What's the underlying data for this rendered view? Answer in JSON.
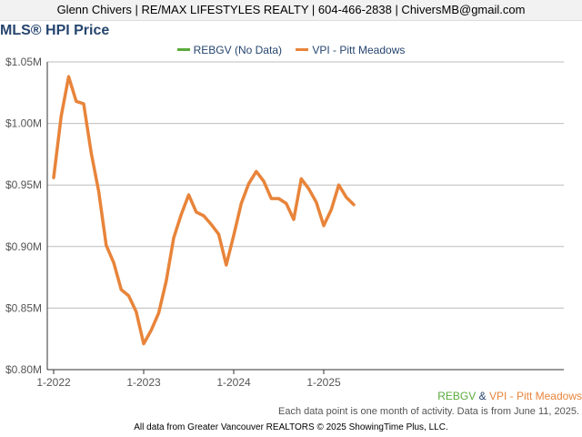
{
  "header": {
    "contact": "Glenn Chivers | RE/MAX LIFESTYLES REALTY | 604-466-2838 | ChiversMB@gmail.com"
  },
  "chart_data": {
    "type": "line",
    "title": "MLS® HPI Price",
    "ylim": [
      800000,
      1050000
    ],
    "y_ticks": [
      800000,
      850000,
      900000,
      950000,
      1000000,
      1050000
    ],
    "y_tick_labels": [
      "$0.80M",
      "$0.85M",
      "$0.90M",
      "$0.95M",
      "$1.00M",
      "$1.05M"
    ],
    "x_ticks": [
      "2022-01",
      "2023-01",
      "2024-01",
      "2025-01"
    ],
    "x_tick_labels": [
      "1-2022",
      "1-2023",
      "1-2024",
      "1-2025"
    ],
    "legend": [
      "REBGV (No Data)",
      "VPI - Pitt Meadows"
    ],
    "legend_placement": "top-center",
    "grid": true,
    "series": [
      {
        "name": "REBGV (No Data)",
        "color": "#5aab3c",
        "values": []
      },
      {
        "name": "VPI - Pitt Meadows",
        "color": "#e8843a",
        "x": [
          "2022-01",
          "2022-02",
          "2022-03",
          "2022-04",
          "2022-05",
          "2022-06",
          "2022-07",
          "2022-08",
          "2022-09",
          "2022-10",
          "2022-11",
          "2022-12",
          "2023-01",
          "2023-02",
          "2023-03",
          "2023-04",
          "2023-05",
          "2023-06",
          "2023-07",
          "2023-08",
          "2023-09",
          "2023-10",
          "2023-11",
          "2023-12",
          "2024-01",
          "2024-02",
          "2024-03",
          "2024-04",
          "2024-05",
          "2024-06",
          "2024-07",
          "2024-08",
          "2024-09",
          "2024-10",
          "2024-11",
          "2024-12",
          "2025-01",
          "2025-02",
          "2025-03",
          "2025-04",
          "2025-05"
        ],
        "values": [
          956000,
          1006000,
          1038000,
          1018000,
          1016000,
          976000,
          945000,
          901000,
          887000,
          865000,
          860000,
          847000,
          821000,
          832000,
          846000,
          872000,
          907000,
          926000,
          942000,
          928000,
          925000,
          918000,
          910000,
          885000,
          909000,
          935000,
          951000,
          961000,
          953000,
          939000,
          939000,
          935000,
          922000,
          955000,
          947000,
          936000,
          917000,
          930000,
          950000,
          940000,
          934000
        ]
      }
    ]
  },
  "footer": {
    "legend_left": "REBGV",
    "legend_sep": "&",
    "legend_right": "VPI - Pitt Meadows",
    "note": "Each data point is one month of activity. Data is from June 11, 2025.",
    "copyright": "All data from Greater Vancouver REALTORS © 2025 ShowingTime Plus, LLC."
  }
}
